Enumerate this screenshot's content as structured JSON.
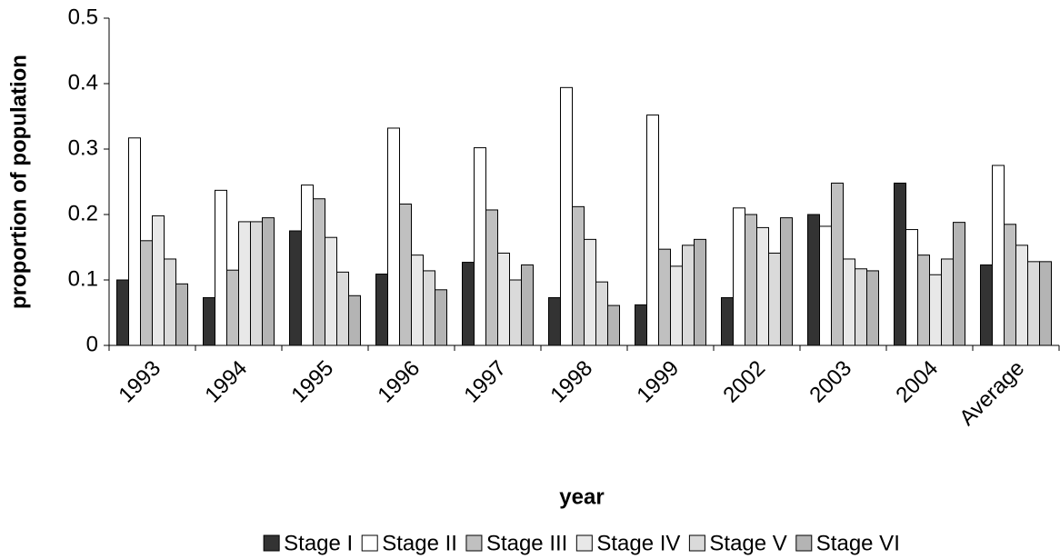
{
  "chart_data": {
    "type": "bar",
    "x_label": "year",
    "y_label": "proportion of population",
    "categories": [
      "1993",
      "1994",
      "1995",
      "1996",
      "1997",
      "1998",
      "1999",
      "2002",
      "2003",
      "2004",
      "Average"
    ],
    "series": [
      {
        "name": "Stage I",
        "color": "#333333",
        "values": [
          0.1,
          0.073,
          0.175,
          0.109,
          0.127,
          0.073,
          0.062,
          0.073,
          0.2,
          0.248,
          0.123
        ]
      },
      {
        "name": "Stage II",
        "color": "#ffffff",
        "values": [
          0.317,
          0.237,
          0.245,
          0.332,
          0.302,
          0.394,
          0.352,
          0.21,
          0.182,
          0.177,
          0.275
        ]
      },
      {
        "name": "Stage III",
        "color": "#c0c0c0",
        "values": [
          0.16,
          0.115,
          0.224,
          0.216,
          0.207,
          0.212,
          0.147,
          0.2,
          0.248,
          0.138,
          0.185
        ]
      },
      {
        "name": "Stage IV",
        "color": "#e8e8e8",
        "values": [
          0.198,
          0.189,
          0.165,
          0.138,
          0.141,
          0.162,
          0.121,
          0.18,
          0.132,
          0.108,
          0.153
        ]
      },
      {
        "name": "Stage V",
        "color": "#dadada",
        "values": [
          0.132,
          0.189,
          0.112,
          0.114,
          0.1,
          0.097,
          0.153,
          0.141,
          0.117,
          0.132,
          0.128
        ]
      },
      {
        "name": "Stage VI",
        "color": "#b4b4b4",
        "values": [
          0.094,
          0.195,
          0.076,
          0.085,
          0.123,
          0.061,
          0.162,
          0.195,
          0.114,
          0.188,
          0.128
        ]
      }
    ],
    "ylim": [
      0,
      0.5
    ],
    "yticks": [
      0,
      0.1,
      0.2,
      0.3,
      0.4,
      0.5
    ],
    "grid": false
  }
}
